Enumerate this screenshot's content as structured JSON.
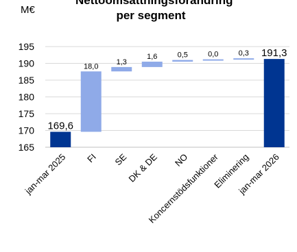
{
  "chart_data": {
    "type": "bar",
    "variant": "waterfall",
    "title_lines": [
      "Nettoomsättningsförändring",
      "per segment"
    ],
    "y_unit": "M€",
    "ylim": [
      165,
      195
    ],
    "y_ticks": [
      "165",
      "170",
      "175",
      "180",
      "185",
      "190",
      "195"
    ],
    "grid": true,
    "categories": [
      "jan-mar 2025",
      "FI",
      "SE",
      "DK & DE",
      "NO",
      "Koncernstödsfunktioner",
      "Eliminering",
      "jan-mar 2026"
    ],
    "bars": [
      {
        "kind": "total",
        "start": 0,
        "end": 169.6,
        "label": "169,6"
      },
      {
        "kind": "delta",
        "start": 169.6,
        "end": 187.6,
        "label": "18,0"
      },
      {
        "kind": "delta",
        "start": 187.6,
        "end": 188.9,
        "label": "1,3"
      },
      {
        "kind": "delta",
        "start": 188.9,
        "end": 190.5,
        "label": "1,6"
      },
      {
        "kind": "delta",
        "start": 190.5,
        "end": 191.0,
        "label": "0,5"
      },
      {
        "kind": "delta",
        "start": 191.0,
        "end": 191.0,
        "label": "0,0"
      },
      {
        "kind": "delta",
        "start": 191.0,
        "end": 191.3,
        "label": "0,3"
      },
      {
        "kind": "total",
        "start": 0,
        "end": 191.3,
        "label": "191,3"
      }
    ],
    "colors": {
      "total": "#003591",
      "delta": "#8FAAE8",
      "grid": "#D9D9D9",
      "axis": "#BFBFBF"
    }
  }
}
